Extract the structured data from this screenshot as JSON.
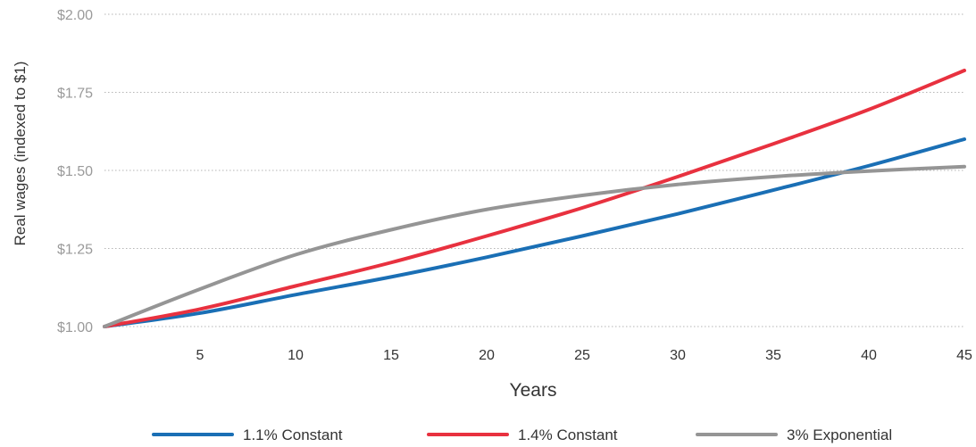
{
  "chart_data": {
    "type": "line",
    "title": "",
    "xlabel": "Years",
    "ylabel": "Real wages (indexed to $1)",
    "xlim": [
      0,
      45
    ],
    "ylim": [
      1.0,
      2.0
    ],
    "x_ticks": [
      5,
      10,
      15,
      20,
      25,
      30,
      35,
      40,
      45
    ],
    "y_ticks": [
      {
        "value": 1.0,
        "label": "$1.00"
      },
      {
        "value": 1.25,
        "label": "$1.25"
      },
      {
        "value": 1.5,
        "label": "$1.50"
      },
      {
        "value": 1.75,
        "label": "$1.75"
      },
      {
        "value": 2.0,
        "label": "$2.00"
      }
    ],
    "grid": "horizontal dotted",
    "legend_position": "bottom",
    "x": [
      0,
      5,
      10,
      15,
      20,
      25,
      30,
      35,
      40,
      45
    ],
    "series": [
      {
        "name": "1.1% Constant",
        "color": "#1a6fb5",
        "values": [
          1.0,
          1.043,
          1.102,
          1.159,
          1.222,
          1.29,
          1.361,
          1.437,
          1.515,
          1.6
        ]
      },
      {
        "name": "1.4% Constant",
        "color": "#e8313f",
        "values": [
          1.0,
          1.056,
          1.13,
          1.205,
          1.29,
          1.38,
          1.48,
          1.585,
          1.695,
          1.82
        ]
      },
      {
        "name": "3% Exponential",
        "color": "#959595",
        "values": [
          1.0,
          1.12,
          1.23,
          1.31,
          1.375,
          1.42,
          1.455,
          1.48,
          1.498,
          1.512
        ]
      }
    ]
  }
}
